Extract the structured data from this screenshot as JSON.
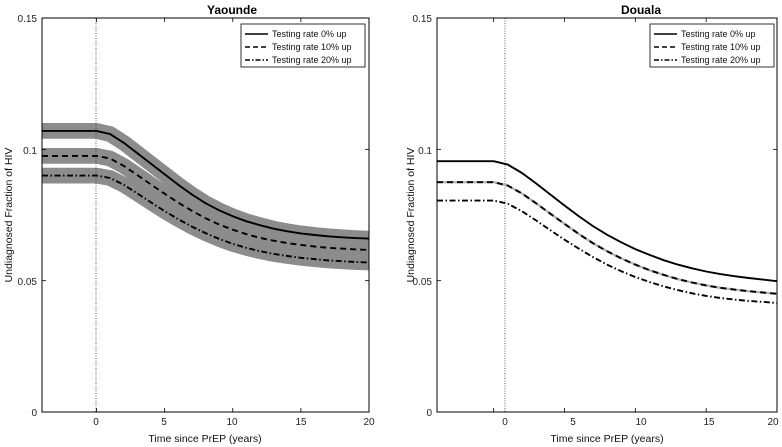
{
  "chart_data": [
    {
      "type": "line",
      "title": "Yaounde",
      "xlabel": "Time since PrEP (years)",
      "ylabel": "Undiagnosed Fraction of HIV",
      "xlim": [
        -4,
        20
      ],
      "ylim": [
        0,
        0.15
      ],
      "xticks": [
        0,
        5,
        10,
        15,
        20
      ],
      "yticks": [
        0,
        0.05,
        0.1,
        0.15
      ],
      "ytick_labels": [
        "0",
        "0.05",
        "0.1",
        "0.15"
      ],
      "vline_x": 0,
      "legend_position": "top-right",
      "x": [
        -4,
        0,
        1,
        2,
        3,
        4,
        5,
        6,
        7,
        8,
        9,
        10,
        11,
        12,
        13,
        14,
        15,
        16,
        17,
        18,
        19,
        20
      ],
      "series": [
        {
          "name": "Testing rate 0% up",
          "style": "solid",
          "band": 0.003,
          "values": [
            0.107,
            0.107,
            0.1058,
            0.1025,
            0.0985,
            0.0945,
            0.0905,
            0.0865,
            0.0828,
            0.0795,
            0.0768,
            0.0745,
            0.0726,
            0.0711,
            0.0698,
            0.0688,
            0.068,
            0.0674,
            0.0669,
            0.0665,
            0.0662,
            0.066
          ]
        },
        {
          "name": "Testing rate 10% up",
          "style": "dashed",
          "band": 0.003,
          "values": [
            0.0975,
            0.0975,
            0.0965,
            0.0937,
            0.0902,
            0.0866,
            0.0831,
            0.0797,
            0.0766,
            0.0738,
            0.0714,
            0.0694,
            0.0677,
            0.0663,
            0.0652,
            0.0643,
            0.0636,
            0.063,
            0.0625,
            0.0622,
            0.0619,
            0.0617
          ]
        },
        {
          "name": "Testing rate 20% up",
          "style": "dashdot",
          "band": 0.003,
          "values": [
            0.09,
            0.09,
            0.0891,
            0.0865,
            0.0832,
            0.0798,
            0.0765,
            0.0734,
            0.0706,
            0.0681,
            0.0659,
            0.064,
            0.0625,
            0.0612,
            0.0602,
            0.0594,
            0.0587,
            0.0582,
            0.0577,
            0.0574,
            0.0571,
            0.0569
          ]
        }
      ]
    },
    {
      "type": "line",
      "title": "Douala",
      "xlabel": "Time since PrEP (years)",
      "ylabel": "Undiagnosed Fraction of HIV",
      "xlim": [
        -4,
        20
      ],
      "ylim": [
        0,
        0.15
      ],
      "xticks": [
        0,
        5,
        10,
        15,
        20
      ],
      "yticks": [
        0,
        0.05,
        0.1,
        0.15
      ],
      "ytick_labels": [
        "0",
        "0.05",
        "0.1",
        "0.15"
      ],
      "vline_x": 0,
      "legend_position": "top-right",
      "x": [
        -4,
        0,
        1,
        2,
        3,
        4,
        5,
        6,
        7,
        8,
        9,
        10,
        11,
        12,
        13,
        14,
        15,
        16,
        17,
        18,
        19,
        20
      ],
      "series": [
        {
          "name": "Testing rate 0% up",
          "style": "solid",
          "band": 0.0,
          "values": [
            0.0955,
            0.0955,
            0.0942,
            0.091,
            0.087,
            0.0828,
            0.0786,
            0.0746,
            0.0708,
            0.0675,
            0.0646,
            0.062,
            0.0598,
            0.0578,
            0.0561,
            0.0547,
            0.0535,
            0.0525,
            0.0517,
            0.051,
            0.0504,
            0.0498
          ]
        },
        {
          "name": "Testing rate 10% up",
          "style": "dashed",
          "band": 0.0,
          "values": [
            0.0875,
            0.0875,
            0.0862,
            0.0832,
            0.0794,
            0.0755,
            0.0716,
            0.0678,
            0.0643,
            0.0612,
            0.0585,
            0.0561,
            0.054,
            0.0522,
            0.0506,
            0.0493,
            0.0482,
            0.0473,
            0.0466,
            0.046,
            0.0455,
            0.045
          ]
        },
        {
          "name": "Testing rate 20% up",
          "style": "dashdot",
          "band": 0.0,
          "values": [
            0.0805,
            0.0805,
            0.0793,
            0.0764,
            0.0729,
            0.0692,
            0.0656,
            0.0622,
            0.059,
            0.0561,
            0.0536,
            0.0514,
            0.0495,
            0.0478,
            0.0464,
            0.0452,
            0.0442,
            0.0434,
            0.0428,
            0.0423,
            0.0419,
            0.0415
          ]
        }
      ]
    }
  ]
}
